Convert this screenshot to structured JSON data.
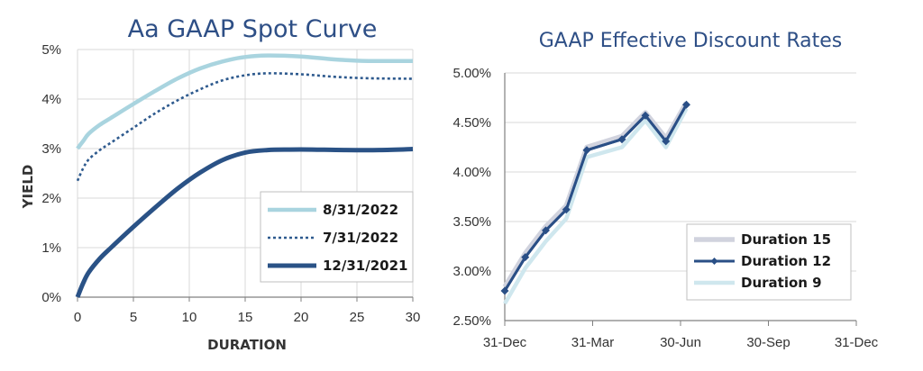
{
  "chart_data": [
    {
      "type": "line",
      "title": "Aa GAAP Spot Curve",
      "xlabel": "DURATION",
      "ylabel": "YIELD",
      "xlim": [
        0,
        30
      ],
      "ylim": [
        0,
        5
      ],
      "x_ticks": [
        "0",
        "5",
        "10",
        "15",
        "20",
        "25",
        "30"
      ],
      "y_ticks": [
        "0%",
        "1%",
        "2%",
        "3%",
        "4%",
        "5%"
      ],
      "legend_position": "bottom-right",
      "series": [
        {
          "name": "8/31/2022",
          "color": "#a9d4df",
          "style": "solid",
          "x": [
            0,
            0.5,
            1,
            2,
            3,
            5,
            7,
            9,
            11,
            13,
            15,
            17,
            20,
            23,
            26,
            30
          ],
          "y": [
            3.0,
            3.15,
            3.3,
            3.48,
            3.62,
            3.9,
            4.17,
            4.42,
            4.62,
            4.76,
            4.85,
            4.88,
            4.86,
            4.8,
            4.77,
            4.77
          ]
        },
        {
          "name": "7/31/2022",
          "color": "#2e5a8e",
          "style": "dotted",
          "x": [
            0,
            0.5,
            1,
            2,
            3,
            5,
            7,
            9,
            11,
            13,
            15,
            17,
            20,
            23,
            26,
            30
          ],
          "y": [
            2.35,
            2.6,
            2.78,
            2.97,
            3.12,
            3.42,
            3.72,
            3.98,
            4.2,
            4.38,
            4.48,
            4.52,
            4.5,
            4.45,
            4.42,
            4.41
          ]
        },
        {
          "name": "12/31/2021",
          "color": "#2a5286",
          "style": "solid-thick",
          "x": [
            0,
            0.5,
            1,
            2,
            3,
            5,
            7,
            9,
            11,
            13,
            15,
            17,
            19,
            21,
            24,
            27,
            30
          ],
          "y": [
            0,
            0.28,
            0.5,
            0.78,
            1.0,
            1.42,
            1.82,
            2.2,
            2.52,
            2.77,
            2.92,
            2.97,
            2.98,
            2.98,
            2.97,
            2.97,
            2.99
          ]
        }
      ]
    },
    {
      "type": "line",
      "title": "GAAP Effective Discount Rates",
      "xlabel": "",
      "ylabel": "",
      "x_categories": [
        "31-Dec",
        "31-Mar",
        "30-Jun",
        "30-Sep",
        "31-Dec"
      ],
      "xlim_months": [
        0,
        12
      ],
      "ylim": [
        2.5,
        5.0
      ],
      "y_ticks": [
        "2.50%",
        "3.00%",
        "3.50%",
        "4.00%",
        "4.50%",
        "5.00%"
      ],
      "legend_position": "bottom-right",
      "series": [
        {
          "name": "Duration 15",
          "color": "#d1d3de",
          "marker": "none",
          "x": [
            0,
            0.7,
            1.4,
            2.1,
            2.8,
            4.0,
            4.8,
            5.5,
            6.2
          ],
          "y": [
            2.84,
            3.18,
            3.45,
            3.66,
            4.25,
            4.36,
            4.6,
            4.34,
            4.7
          ]
        },
        {
          "name": "Duration 12",
          "color": "#2a4f86",
          "marker": "diamond",
          "x": [
            0,
            0.7,
            1.4,
            2.1,
            2.8,
            4.0,
            4.8,
            5.5,
            6.2
          ],
          "y": [
            2.8,
            3.14,
            3.41,
            3.62,
            4.22,
            4.33,
            4.57,
            4.31,
            4.68
          ]
        },
        {
          "name": "Duration 9",
          "color": "#cfe7ee",
          "marker": "none",
          "x": [
            0,
            0.7,
            1.4,
            2.1,
            2.8,
            4.0,
            4.8,
            5.5,
            6.2
          ],
          "y": [
            2.67,
            3.03,
            3.3,
            3.53,
            4.15,
            4.25,
            4.52,
            4.25,
            4.64
          ]
        }
      ]
    }
  ]
}
